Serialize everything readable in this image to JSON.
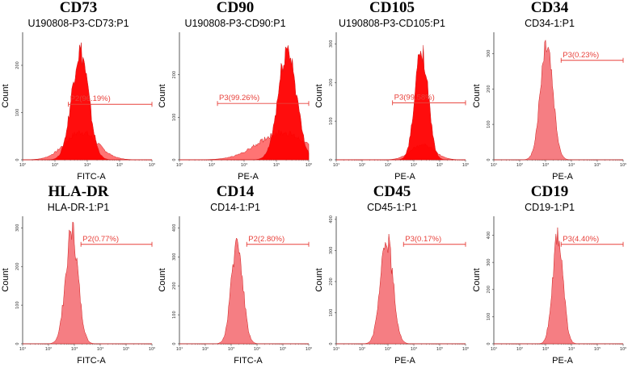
{
  "chart_data": [
    {
      "type": "histogram",
      "title": "CD73",
      "sample": "U190808-P3-CD73:P1",
      "xlabel": "FITC-A",
      "ylabel": "Count",
      "x_scale": "log",
      "xlim": [
        100,
        1000000
      ],
      "ylim": [
        0,
        270
      ],
      "y_ticks": [
        0,
        100,
        200
      ],
      "x_tick_labels": [
        "10²",
        "10³",
        "10⁴",
        "10⁵",
        "10⁶"
      ],
      "gate": {
        "label": "P2(96.19%)",
        "name": "P2",
        "percent": 96.19,
        "x_start": 2600,
        "x_end": 1000000
      },
      "populations": [
        {
          "peak_x": 6000,
          "peak_count": 235,
          "spread_decades": 0.26,
          "fill": "#ff0000"
        },
        {
          "peak_x": 6500,
          "peak_count": 60,
          "spread_decades": 0.5,
          "fill": "#ff5c5c"
        }
      ]
    },
    {
      "type": "histogram",
      "title": "CD90",
      "sample": "U190808-P3-CD90:P1",
      "xlabel": "PE-A",
      "ylabel": "Count",
      "x_scale": "log",
      "xlim": [
        100,
        1000000
      ],
      "ylim": [
        0,
        300
      ],
      "y_ticks": [
        0,
        100,
        200
      ],
      "x_tick_labels": [
        "10²",
        "10³",
        "10⁴",
        "10⁵",
        "10⁶"
      ],
      "gate": {
        "label": "P3(99.26%)",
        "name": "P3",
        "percent": 99.26,
        "x_start": 1500,
        "x_end": 1000000
      },
      "populations": [
        {
          "peak_x": 220000,
          "peak_count": 265,
          "spread_decades": 0.28,
          "fill": "#ff0000"
        },
        {
          "peak_x": 150000,
          "peak_count": 65,
          "spread_decades": 0.75,
          "fill": "#ff5c5c"
        }
      ]
    },
    {
      "type": "histogram",
      "title": "CD105",
      "sample": "U190808-P3-CD105:P1",
      "xlabel": "PE-A",
      "ylabel": "Count",
      "x_scale": "log",
      "xlim": [
        10,
        1000000
      ],
      "ylim": [
        0,
        330
      ],
      "y_ticks": [
        0,
        100,
        200,
        300
      ],
      "x_tick_labels": [
        "10¹",
        "10²",
        "10³",
        "10⁴",
        "10⁵",
        "10⁶"
      ],
      "gate": {
        "label": "P3(99.58%)",
        "name": "P3",
        "percent": 99.58,
        "x_start": 1500,
        "x_end": 1000000
      },
      "populations": [
        {
          "peak_x": 20000,
          "peak_count": 295,
          "spread_decades": 0.25,
          "fill": "#ff0000"
        },
        {
          "peak_x": 22000,
          "peak_count": 40,
          "spread_decades": 0.45,
          "fill": "#ff5c5c"
        }
      ]
    },
    {
      "type": "histogram",
      "title": "CD34",
      "sample": "CD34-1:P1",
      "xlabel": "PE-A",
      "ylabel": "Count",
      "x_scale": "log",
      "xlim": [
        10,
        1000000
      ],
      "ylim": [
        0,
        360
      ],
      "y_ticks": [
        0,
        100,
        200,
        300
      ],
      "x_tick_labels": [
        "10¹",
        "10²",
        "10³",
        "10⁴",
        "10⁵",
        "10⁶"
      ],
      "gate": {
        "label": "P3(0.23%)",
        "name": "P3",
        "percent": 0.23,
        "x_start": 4000,
        "x_end": 1000000
      },
      "populations": [
        {
          "peak_x": 1100,
          "peak_count": 340,
          "spread_decades": 0.24,
          "fill": "#f4777c"
        }
      ]
    },
    {
      "type": "histogram",
      "title": "HLA-DR",
      "sample": "HLA-DR-1:P1",
      "xlabel": "FITC-A",
      "ylabel": "Count",
      "x_scale": "log",
      "xlim": [
        10,
        1000000
      ],
      "ylim": [
        0,
        330
      ],
      "y_ticks": [
        0,
        100,
        200,
        300
      ],
      "x_tick_labels": [
        "10¹",
        "10²",
        "10³",
        "10⁴",
        "10⁵",
        "10⁶"
      ],
      "gate": {
        "label": "P2(0.77%)",
        "name": "P2",
        "percent": 0.77,
        "x_start": 1800,
        "x_end": 1000000
      },
      "populations": [
        {
          "peak_x": 800,
          "peak_count": 300,
          "spread_decades": 0.24,
          "fill": "#f4777c"
        }
      ]
    },
    {
      "type": "histogram",
      "title": "CD14",
      "sample": "CD14-1:P1",
      "xlabel": "FITC-A",
      "ylabel": "Count",
      "x_scale": "log",
      "xlim": [
        10,
        1000000
      ],
      "ylim": [
        0,
        440
      ],
      "y_ticks": [
        0,
        100,
        200,
        300,
        400
      ],
      "x_tick_labels": [
        "10¹",
        "10²",
        "10³",
        "10⁴",
        "10⁵",
        "10⁶"
      ],
      "gate": {
        "label": "P2(2.80%)",
        "name": "P2",
        "percent": 2.8,
        "x_start": 4000,
        "x_end": 1000000
      },
      "populations": [
        {
          "peak_x": 1700,
          "peak_count": 365,
          "spread_decades": 0.22,
          "fill": "#f4777c"
        }
      ]
    },
    {
      "type": "histogram",
      "title": "CD45",
      "sample": "CD45-1:P1",
      "xlabel": "PE-A",
      "ylabel": "Count",
      "x_scale": "log",
      "xlim": [
        10,
        1000000
      ],
      "ylim": [
        0,
        410
      ],
      "y_ticks": [
        0,
        100,
        200,
        300,
        400
      ],
      "x_tick_labels": [
        "10¹",
        "10²",
        "10³",
        "10⁴",
        "10⁵",
        "10⁶"
      ],
      "gate": {
        "label": "P3(0.17%)",
        "name": "P3",
        "percent": 0.17,
        "x_start": 4000,
        "x_end": 1000000
      },
      "populations": [
        {
          "peak_x": 900,
          "peak_count": 345,
          "spread_decades": 0.24,
          "fill": "#f4777c"
        }
      ]
    },
    {
      "type": "histogram",
      "title": "CD19",
      "sample": "CD19-1:P1",
      "xlabel": "PE-A",
      "ylabel": "Count",
      "x_scale": "log",
      "xlim": [
        10,
        1000000
      ],
      "ylim": [
        0,
        470
      ],
      "y_ticks": [
        0,
        100,
        200,
        300,
        400
      ],
      "x_tick_labels": [
        "10¹",
        "10²",
        "10³",
        "10⁴",
        "10⁵",
        "10⁶"
      ],
      "gate": {
        "label": "P3(4.40%)",
        "name": "P3",
        "percent": 4.4,
        "x_start": 4000,
        "x_end": 1000000
      },
      "populations": [
        {
          "peak_x": 3000,
          "peak_count": 415,
          "spread_decades": 0.2,
          "fill": "#f4777c"
        }
      ]
    }
  ]
}
